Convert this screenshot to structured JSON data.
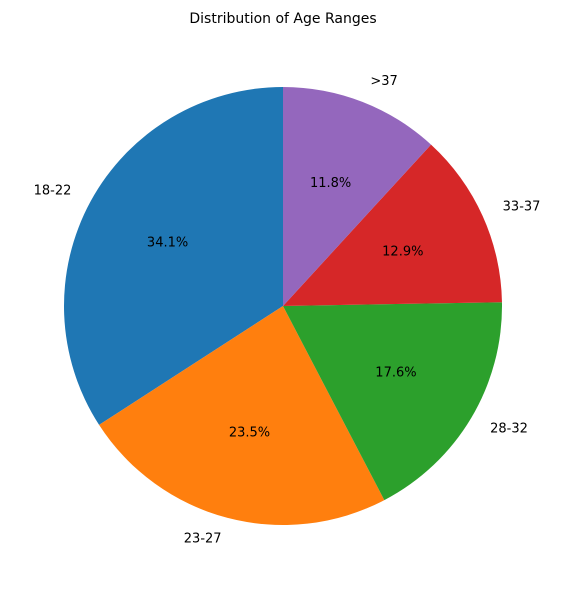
{
  "chart_data": {
    "type": "pie",
    "title": "Distribution of Age Ranges",
    "start_angle_deg": 90,
    "direction": "counterclockwise",
    "labels": [
      "18-22",
      "23-27",
      "28-32",
      "33-37",
      ">37"
    ],
    "values": [
      34.1,
      23.5,
      17.6,
      12.9,
      11.8
    ],
    "percent_labels": [
      "34.1%",
      "23.5%",
      "17.6%",
      "12.9%",
      "11.8%"
    ],
    "colors": [
      "#1f77b4",
      "#ff7f0e",
      "#2ca02c",
      "#d62728",
      "#9467bd"
    ]
  }
}
